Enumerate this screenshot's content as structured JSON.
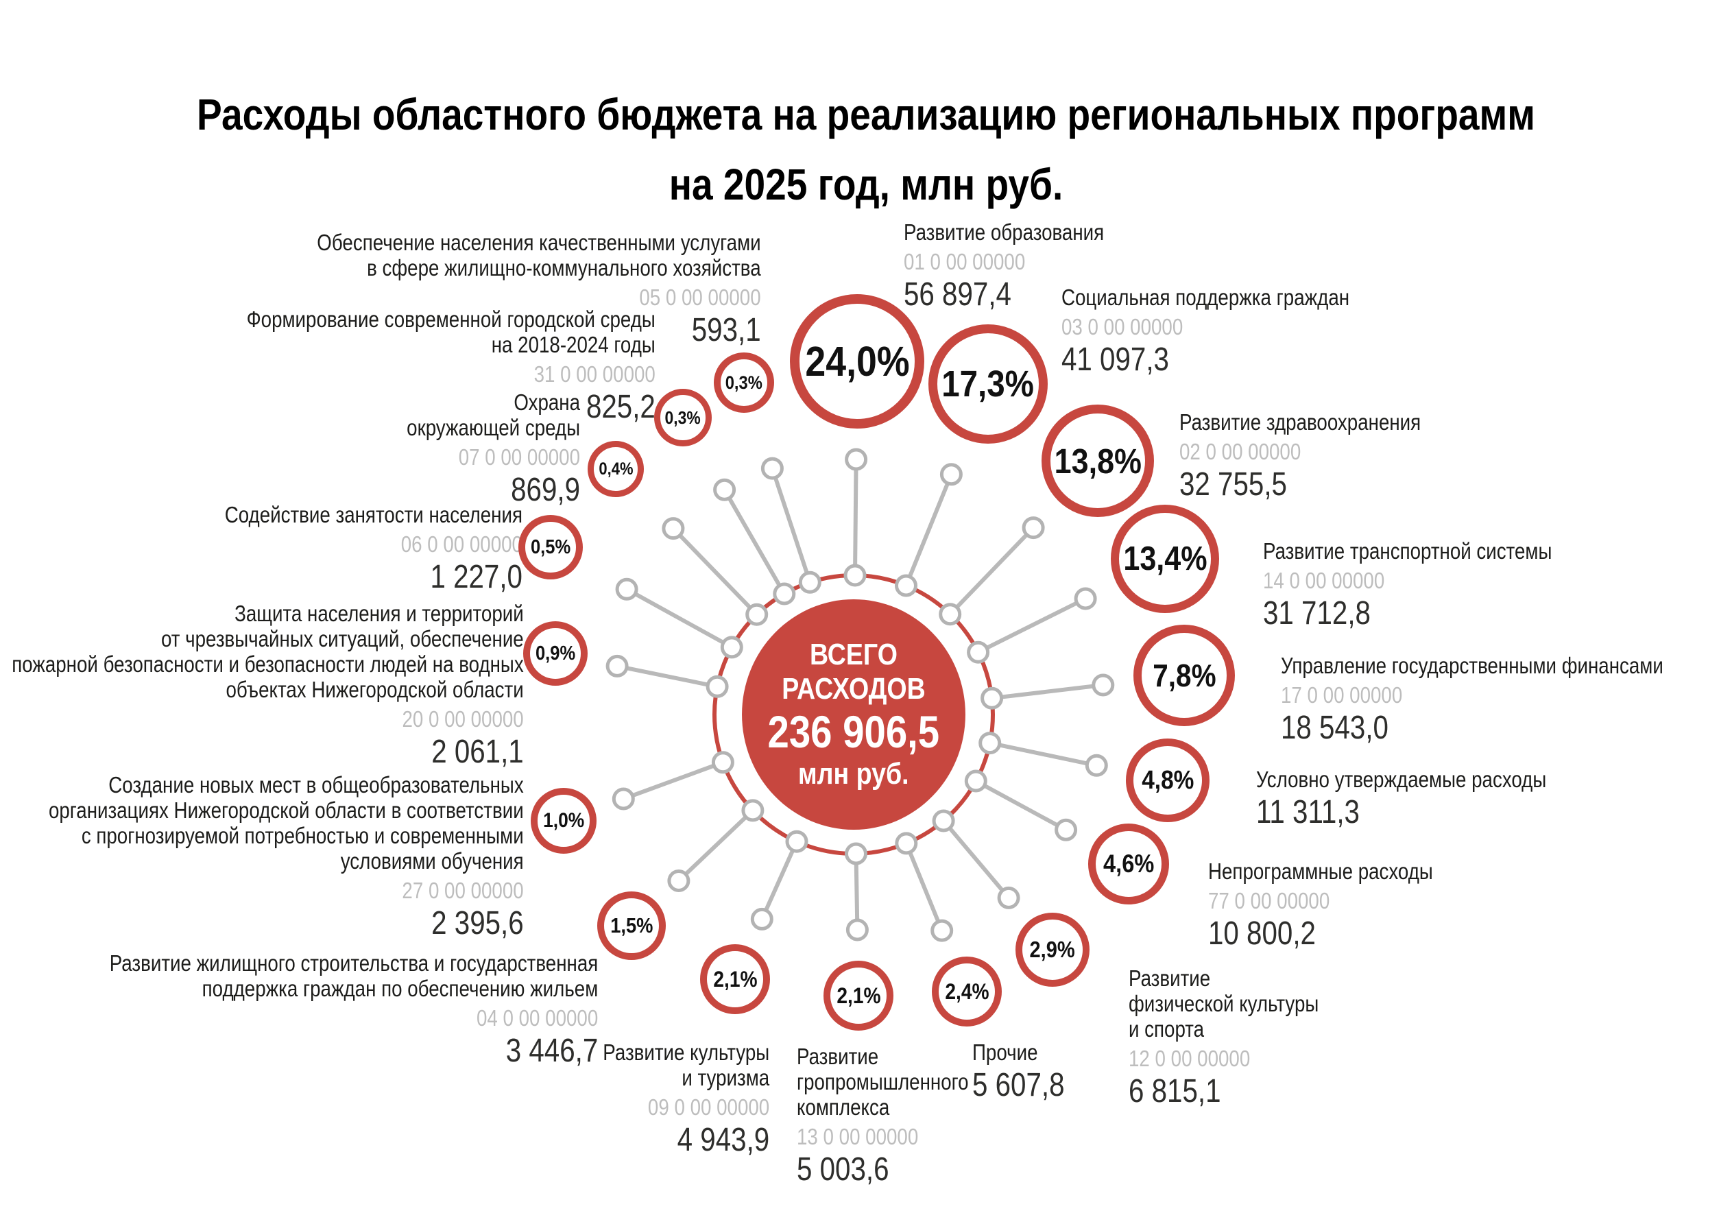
{
  "title": {
    "line1": "Расходы областного бюджета на реализацию региональных программ",
    "line2": "на 2025 год, млн руб."
  },
  "center": {
    "label": "ВСЕГО РАСХОДОВ",
    "amount": "236 906,5",
    "unit": "млн руб."
  },
  "colors": {
    "accent_red": "#c7473f",
    "line_gray": "#b9b9b9",
    "code_gray": "#bdbdbd",
    "text_dark": "#1d1d1b"
  },
  "chart_data": {
    "type": "pie",
    "title": "Расходы областного бюджета на реализацию региональных программ на 2025 год, млн руб.",
    "total_label": "ВСЕГО РАСХОДОВ",
    "total": 236906.5,
    "unit": "млн руб.",
    "legend_position": "radial-labels",
    "items": [
      {
        "name": "Развитие образования",
        "name_lines": [
          "Развитие образования"
        ],
        "code": "01 0 00 00000",
        "amount": "56 897,4",
        "value": 56897.4,
        "percent": "24,0%",
        "percent_value": 24.0
      },
      {
        "name": "Социальная поддержка граждан",
        "name_lines": [
          "Социальная поддержка граждан"
        ],
        "code": "03 0 00 00000",
        "amount": "41 097,3",
        "value": 41097.3,
        "percent": "17,3%",
        "percent_value": 17.3
      },
      {
        "name": "Развитие здравоохранения",
        "name_lines": [
          "Развитие здравоохранения"
        ],
        "code": "02 0 00 00000",
        "amount": "32 755,5",
        "value": 32755.5,
        "percent": "13,8%",
        "percent_value": 13.8
      },
      {
        "name": "Развитие транспортной системы",
        "name_lines": [
          "Развитие транспортной системы"
        ],
        "code": "14 0 00 00000",
        "amount": "31 712,8",
        "value": 31712.8,
        "percent": "13,4%",
        "percent_value": 13.4
      },
      {
        "name": "Управление государственными финансами",
        "name_lines": [
          "Управление государственными финансами"
        ],
        "code": "17 0 00 00000",
        "amount": "18 543,0",
        "value": 18543.0,
        "percent": "7,8%",
        "percent_value": 7.8
      },
      {
        "name": "Условно утверждаемые расходы",
        "name_lines": [
          "Условно утверждаемые расходы"
        ],
        "code": "",
        "amount": "11 311,3",
        "value": 11311.3,
        "percent": "4,8%",
        "percent_value": 4.8
      },
      {
        "name": "Непрограммные расходы",
        "name_lines": [
          "Непрограммные расходы"
        ],
        "code": "77 0 00 00000",
        "amount": "10 800,2",
        "value": 10800.2,
        "percent": "4,6%",
        "percent_value": 4.6
      },
      {
        "name": "Развитие физической культуры и спорта",
        "name_lines": [
          "Развитие",
          "физической культуры",
          "и спорта"
        ],
        "code": "12 0 00 00000",
        "amount": "6 815,1",
        "value": 6815.1,
        "percent": "2,9%",
        "percent_value": 2.9
      },
      {
        "name": "Прочие",
        "name_lines": [
          "Прочие"
        ],
        "code": "",
        "amount": "5 607,8",
        "value": 5607.8,
        "percent": "2,4%",
        "percent_value": 2.4
      },
      {
        "name": "Развитие гропромышленного комплекса",
        "name_lines": [
          "Развитие",
          "гропромышленного",
          "комплекса"
        ],
        "code": "13 0 00 00000",
        "amount": "5 003,6",
        "value": 5003.6,
        "percent": "2,1%",
        "percent_value": 2.1
      },
      {
        "name": "Развитие культуры и туризма",
        "name_lines": [
          "Развитие культуры",
          "и туризма"
        ],
        "code": "09 0 00 00000",
        "amount": "4 943,9",
        "value": 4943.9,
        "percent": "2,1%",
        "percent_value": 2.1
      },
      {
        "name": "Развитие жилищного строительства и государственная поддержка граждан по обеспечению жильем",
        "name_lines": [
          "Развитие жилищного строительства и государственная",
          "поддержка граждан по обеспечению жильем"
        ],
        "code": "04 0 00 00000",
        "amount": "3 446,7",
        "value": 3446.7,
        "percent": "1,5%",
        "percent_value": 1.5
      },
      {
        "name": "Создание новых мест в общеобразовательных организациях Нижегородской области в соответствии с прогнозируемой потребностью и современными условиями обучения",
        "name_lines": [
          "Создание новых мест в общеобразовательных",
          "организациях Нижегородской области в соответствии",
          "с прогнозируемой потребностью и современными",
          "условиями обучения"
        ],
        "code": "27 0 00 00000",
        "amount": "2 395,6",
        "value": 2395.6,
        "percent": "1,0%",
        "percent_value": 1.0
      },
      {
        "name": "Защита населения и территорий от чрезвычайных ситуаций, обеспечение пожарной безопасности и безопасности людей на водных объектах Нижегородской области",
        "name_lines": [
          "Защита населения и территорий",
          "от чрезвычайных ситуаций, обеспечение",
          "пожарной безопасности и безопасности людей на водных",
          "объектах Нижегородской области"
        ],
        "code": "20 0 00 00000",
        "amount": "2 061,1",
        "value": 2061.1,
        "percent": "0,9%",
        "percent_value": 0.9
      },
      {
        "name": "Содействие занятости населения",
        "name_lines": [
          "Содействие занятости населения"
        ],
        "code": "06 0 00 00000",
        "amount": "1 227,0",
        "value": 1227.0,
        "percent": "0,5%",
        "percent_value": 0.5
      },
      {
        "name": "Охрана окружающей среды",
        "name_lines": [
          "Охрана",
          "окружающей среды"
        ],
        "code": "07 0 00 00000",
        "amount": "869,9",
        "value": 869.9,
        "percent": "0,4%",
        "percent_value": 0.4
      },
      {
        "name": "Формирование современной городской среды на 2018-2024 годы",
        "name_lines": [
          "Формирование современной городской среды",
          "на 2018-2024 годы"
        ],
        "code": "31 0 00 00000",
        "amount": "825,2",
        "value": 825.2,
        "percent": "0,3%",
        "percent_value": 0.3
      },
      {
        "name": "Обеспечение населения качественными услугами в сфере жилищно-коммунального хозяйства",
        "name_lines": [
          "Обеспечение населения качественными услугами",
          "в сфере жилищно-коммунального хозяйства"
        ],
        "code": "05 0 00 00000",
        "amount": "593,1",
        "value": 593.1,
        "percent": "0,3%",
        "percent_value": 0.3
      }
    ]
  }
}
